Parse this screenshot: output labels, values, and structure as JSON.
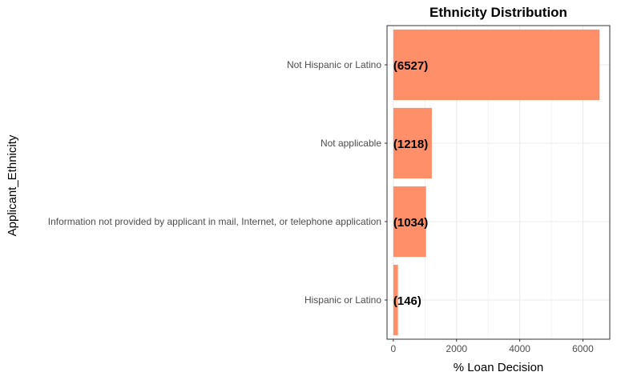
{
  "chart_data": {
    "type": "bar",
    "orientation": "horizontal",
    "title": "Ethnicity Distribution",
    "xlabel": "% Loan Decision",
    "ylabel": "Applicant_Ethnicity",
    "categories": [
      "Not Hispanic or Latino",
      "Not applicable",
      "Information not provided by applicant in mail, Internet, or telephone application",
      "Hispanic or Latino"
    ],
    "values": [
      6527,
      1218,
      1034,
      146
    ],
    "data_labels": [
      "(6527)",
      "(1218)",
      "(1034)",
      "(146)"
    ],
    "xlim": [
      -200,
      6850
    ],
    "x_ticks": [
      0,
      2000,
      4000,
      6000
    ],
    "x_tick_labels": [
      "0",
      "2000",
      "4000",
      "6000"
    ],
    "grid": true,
    "bar_color": "#ff8f69",
    "panel_border_color": "#333333",
    "grid_color": "#ebebeb"
  }
}
